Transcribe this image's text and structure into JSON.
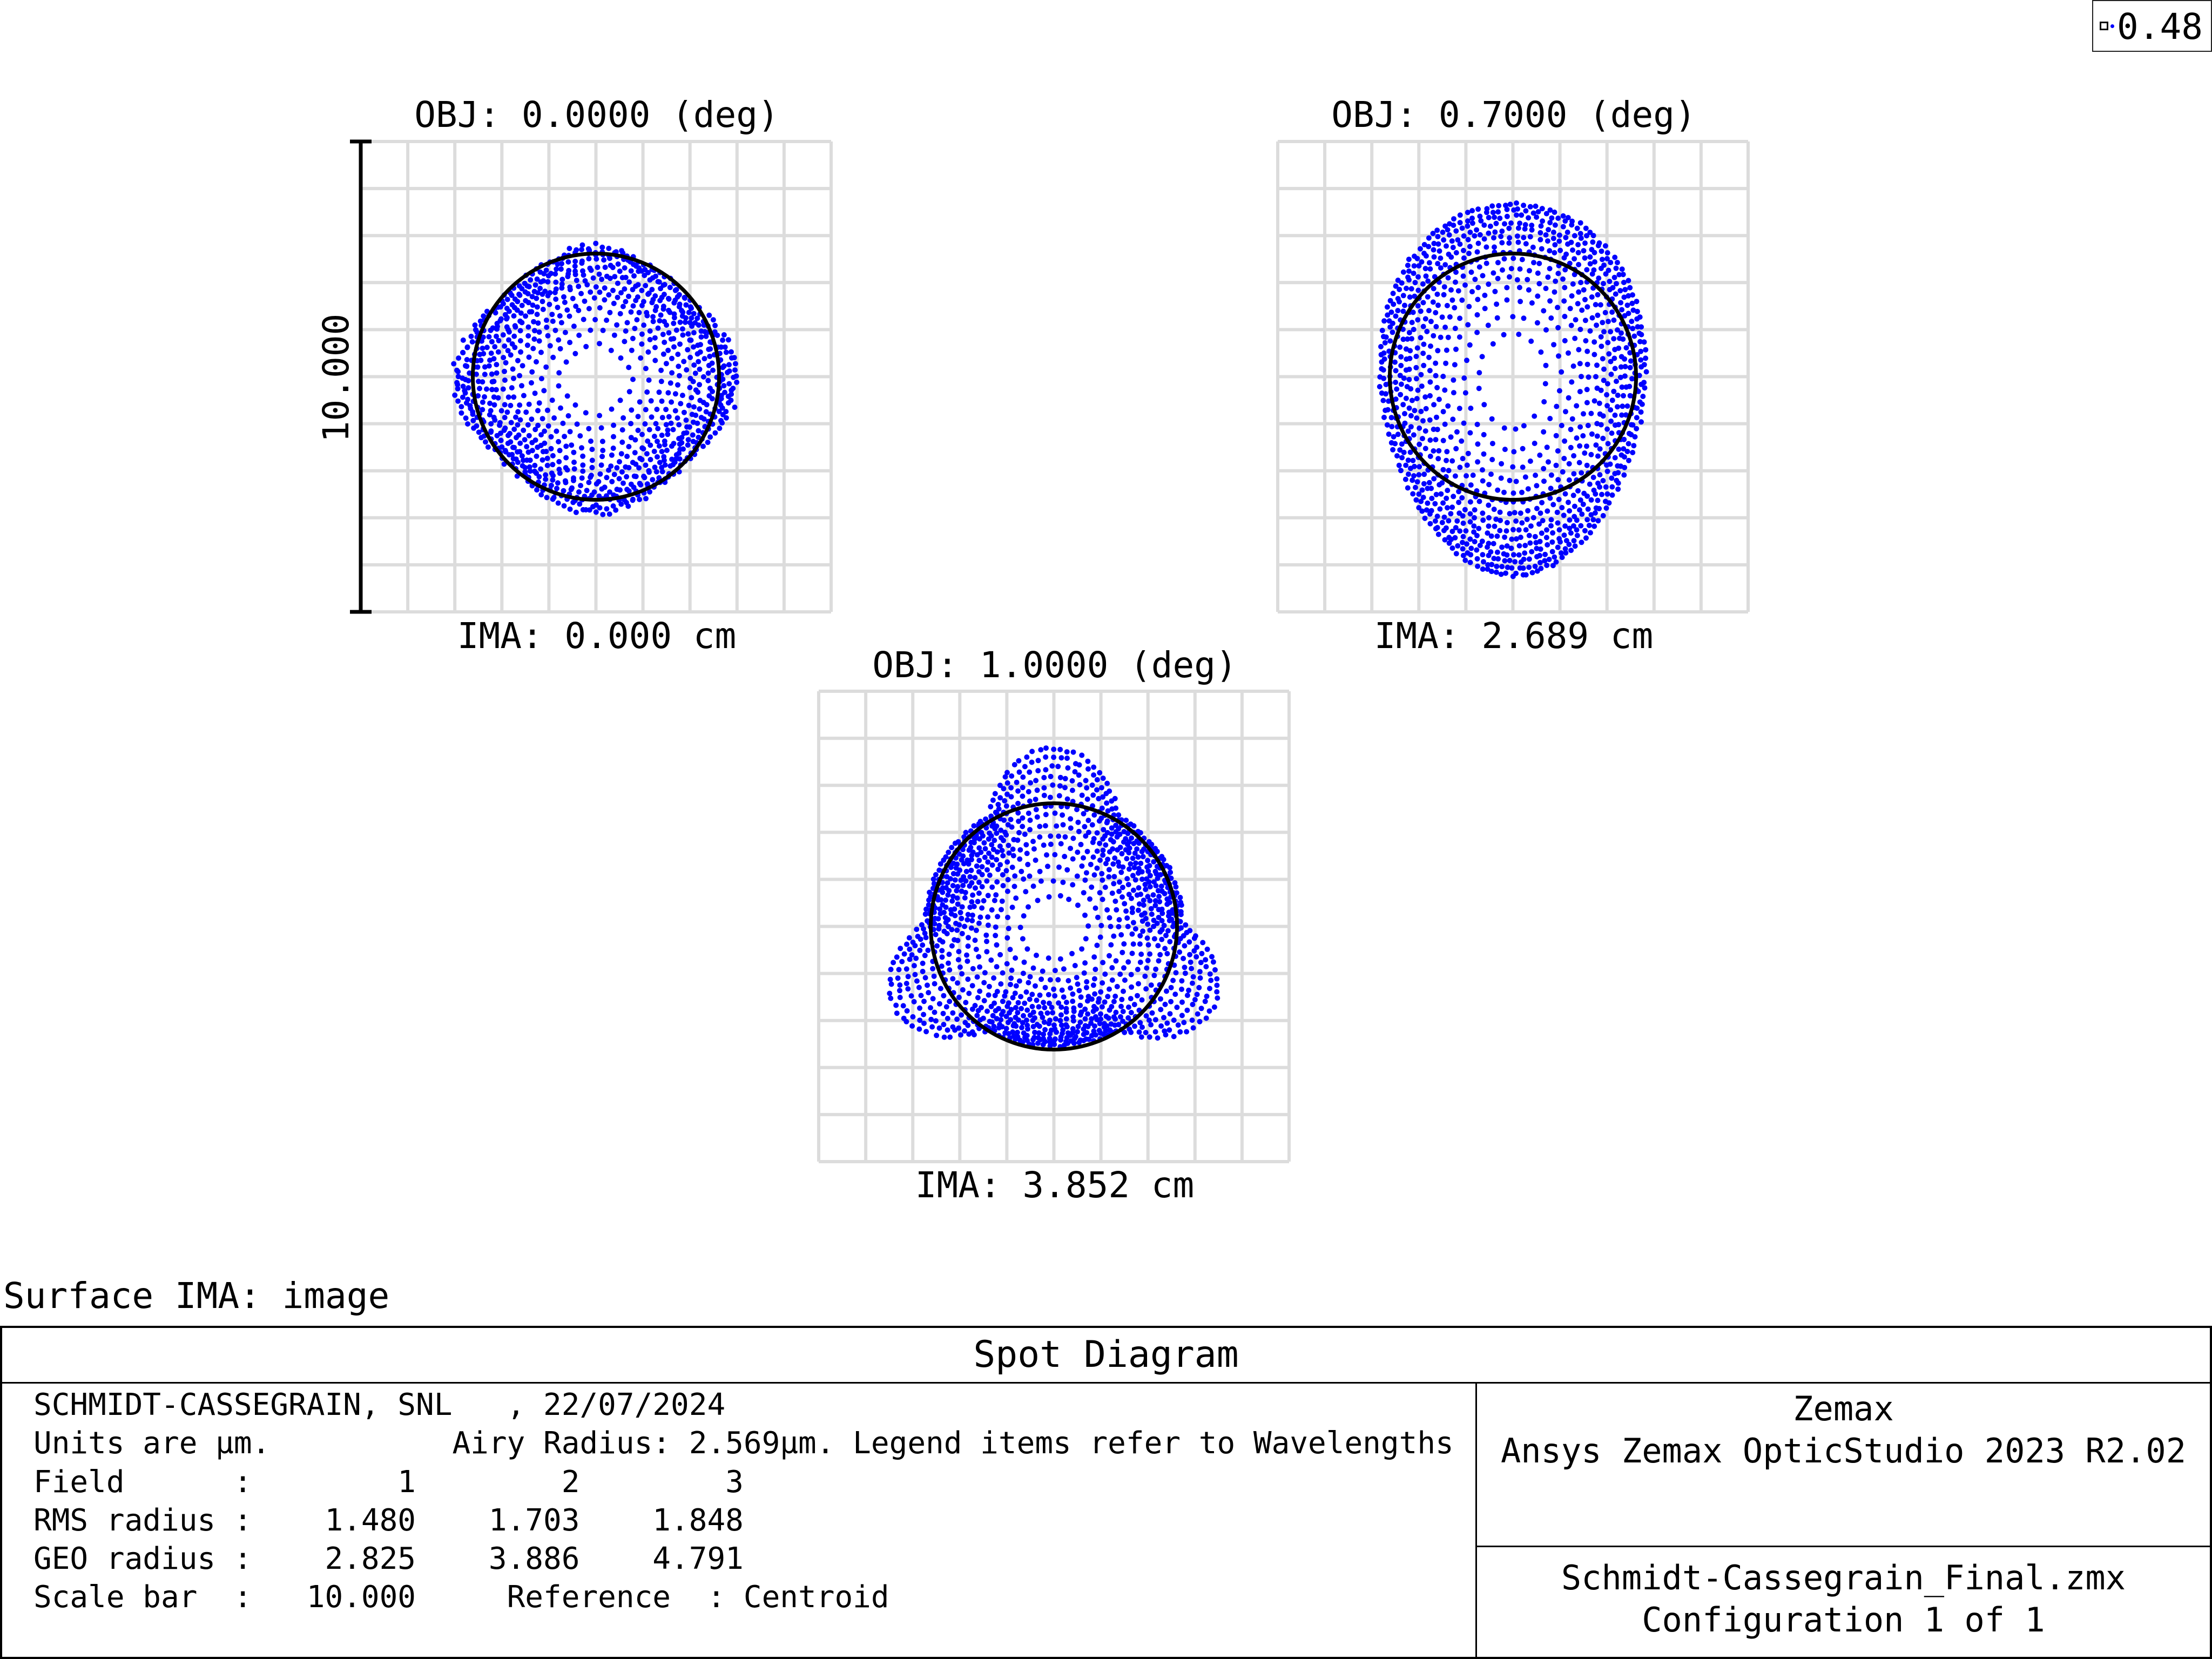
{
  "legend": {
    "value": "0.48",
    "marker_color": "#0000ff"
  },
  "chart_data": {
    "type": "scatter",
    "units": "µm",
    "scale_bar": {
      "label": "10.000",
      "value": 10.0
    },
    "grid": true,
    "box_size_um": 20,
    "spot_color": "#0000ff",
    "circle_color": "#000000",
    "panels": [
      {
        "obj": "OBJ: 0.0000 (deg)",
        "ima": "IMA: 0.000 cm",
        "pattern": "round",
        "airy_radius_um": 2.569,
        "rms_radius_um": 1.48,
        "geo_radius_um": 2.825
      },
      {
        "obj": "OBJ: 0.7000 (deg)",
        "ima": "IMA: 2.689 cm",
        "pattern": "egg",
        "airy_radius_um": 2.569,
        "rms_radius_um": 1.703,
        "geo_radius_um": 3.886
      },
      {
        "obj": "OBJ: 1.0000 (deg)",
        "ima": "IMA: 3.852 cm",
        "pattern": "trefoil",
        "airy_radius_um": 2.569,
        "rms_radius_um": 1.848,
        "geo_radius_um": 4.791
      }
    ]
  },
  "surface_label": "Surface IMA: image",
  "info": {
    "title": "Spot Diagram",
    "rows": [
      "SCHMIDT-CASSEGRAIN, SNL   , 22/07/2024",
      "Units are µm.          Airy Radius: 2.569µm. Legend items refer to Wavelengths",
      "Field      :        1        2        3",
      "RMS radius :    1.480    1.703    1.848",
      "GEO radius :    2.825    3.886    4.791",
      "Scale bar  :   10.000     Reference  : Centroid"
    ],
    "brand": "Zemax",
    "product": "Ansys Zemax OpticStudio 2023 R2.02",
    "file": "Schmidt-Cassegrain_Final.zmx",
    "configuration": "Configuration 1 of 1"
  }
}
